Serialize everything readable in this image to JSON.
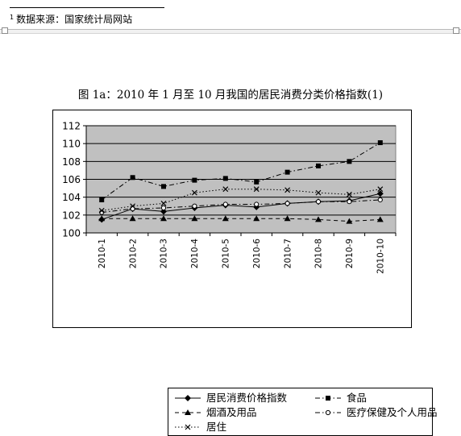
{
  "footnote": {
    "marker": "1",
    "text": "数据来源：国家统计局网站"
  },
  "chart_data": {
    "type": "line",
    "title": "图 1a：2010 年 1 月至 10 月我国的居民消费分类价格指数(1)",
    "xlabel": "",
    "ylabel": "",
    "categories": [
      "2010-1",
      "2010-2",
      "2010-3",
      "2010-4",
      "2010-5",
      "2010-6",
      "2010-7",
      "2010-8",
      "2010-9",
      "2010-10"
    ],
    "ylim": [
      100,
      112
    ],
    "yticks": [
      100,
      102,
      104,
      106,
      108,
      110,
      112
    ],
    "grid": "horizontal",
    "plot_background": "#c0c0c0",
    "legend_position": "bottom",
    "series": [
      {
        "name": "居民消费价格指数",
        "marker": "diamond",
        "line": "solid",
        "values": [
          101.5,
          102.7,
          102.4,
          102.8,
          103.1,
          102.9,
          103.3,
          103.5,
          103.6,
          104.4
        ]
      },
      {
        "name": "食品",
        "marker": "square",
        "line": "dashdot",
        "values": [
          103.7,
          106.2,
          105.2,
          105.9,
          106.1,
          105.7,
          106.8,
          107.5,
          108.0,
          110.1
        ]
      },
      {
        "name": "烟酒及用品",
        "marker": "triangle",
        "line": "dashed",
        "values": [
          101.6,
          101.6,
          101.6,
          101.6,
          101.6,
          101.6,
          101.6,
          101.5,
          101.3,
          101.5
        ]
      },
      {
        "name": "医疗保健及个人用品",
        "marker": "circle",
        "line": "dashdot",
        "values": [
          102.3,
          102.7,
          102.8,
          103.0,
          103.2,
          103.2,
          103.3,
          103.5,
          103.5,
          103.7
        ]
      },
      {
        "name": "居住",
        "marker": "x",
        "line": "dotted",
        "values": [
          102.5,
          103.0,
          103.3,
          104.5,
          104.9,
          104.9,
          104.8,
          104.5,
          104.3,
          104.9
        ]
      }
    ]
  }
}
